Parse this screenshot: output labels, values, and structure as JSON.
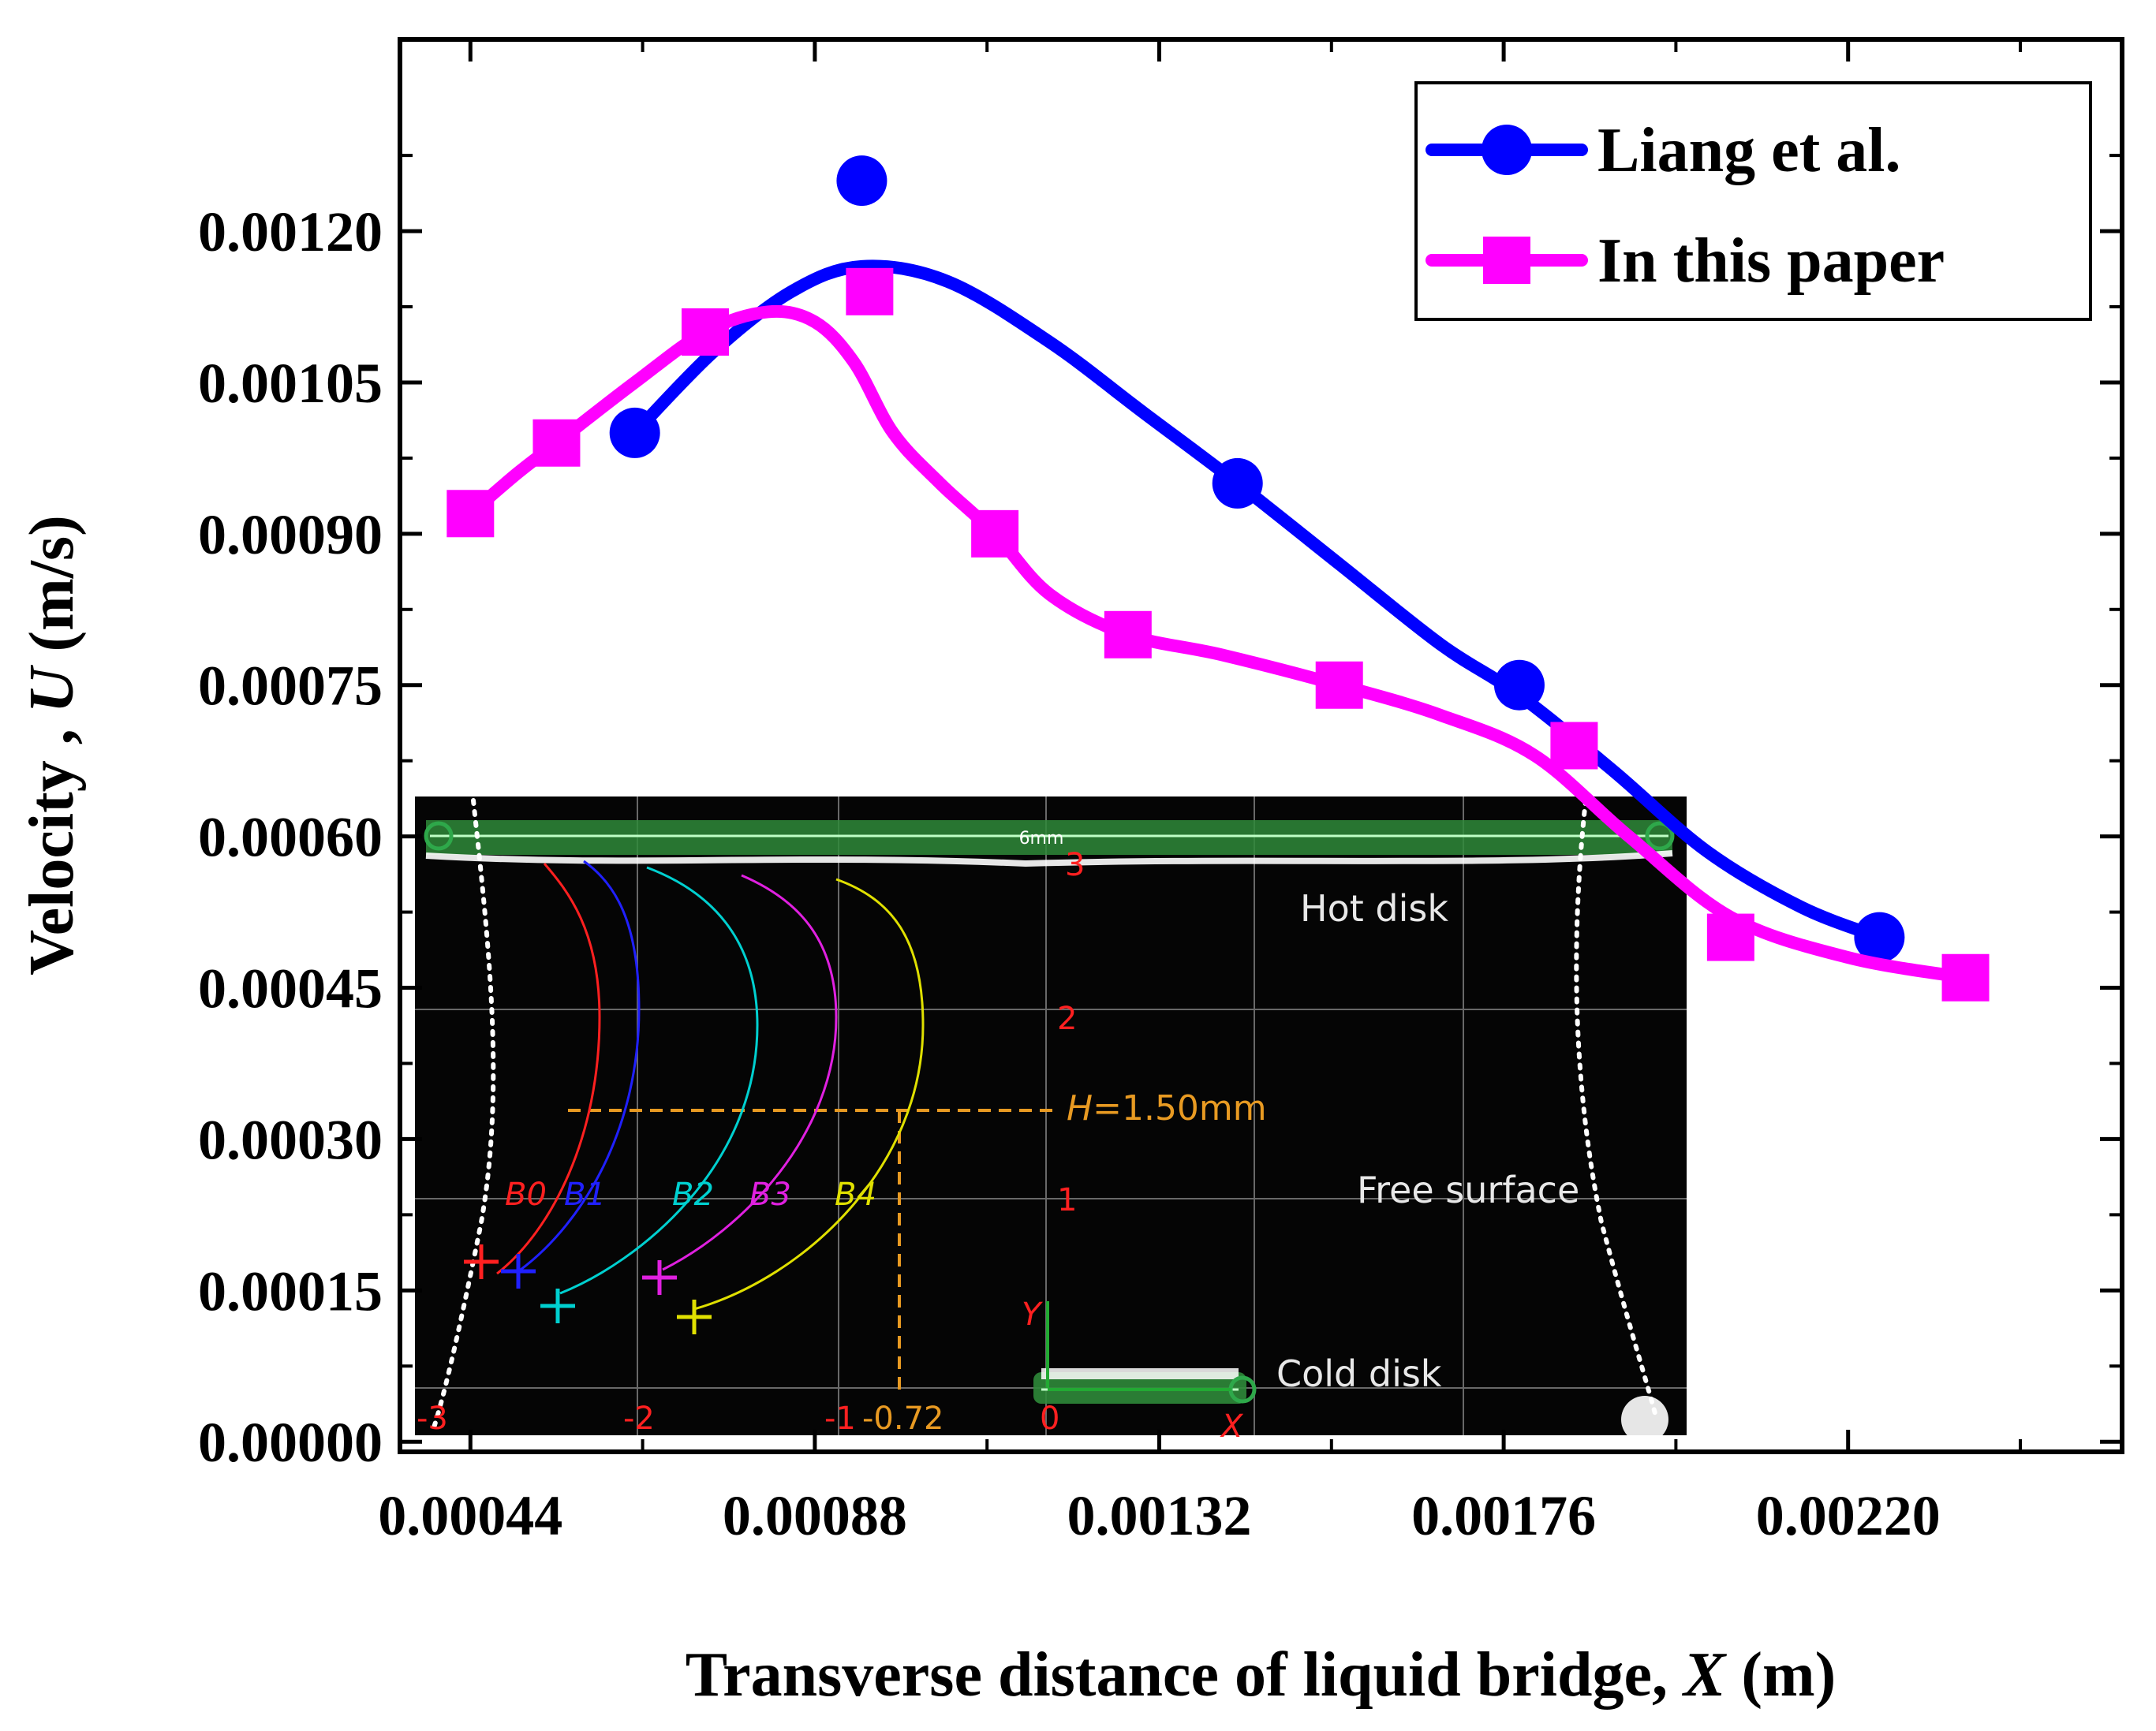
{
  "chart_data": {
    "type": "line",
    "xlabel_prefix": "Transverse distance of liquid bridge, ",
    "xlabel_var": "X",
    "xlabel_unit": " (m)",
    "ylabel_prefix": "Velocity , ",
    "ylabel_var": "U",
    "ylabel_unit": " (m/s)",
    "xlim": [
      0.00035,
      0.00255
    ],
    "ylim": [
      -1e-05,
      0.00139
    ],
    "x_ticks": [
      0.00044,
      0.00088,
      0.00132,
      0.00176,
      0.0022
    ],
    "x_tick_labels": [
      "0.00044",
      "0.00088",
      "0.00132",
      "0.00176",
      "0.00220"
    ],
    "y_ticks": [
      0.0,
      0.00015,
      0.0003,
      0.00045,
      0.0006,
      0.00075,
      0.0009,
      0.00105,
      0.0012
    ],
    "y_tick_labels": [
      "0.00000",
      "0.00015",
      "0.00030",
      "0.00045",
      "0.00060",
      "0.00075",
      "0.00090",
      "0.00105",
      "0.00120"
    ],
    "grid": false,
    "legend_position": "top-right",
    "series": [
      {
        "name": "Liang et al.",
        "color": "#0000ff",
        "marker": "circle",
        "x": [
          0.00065,
          0.00094,
          0.00142,
          0.00178,
          0.00224
        ],
        "y": [
          0.001,
          0.00125,
          0.00095,
          0.00075,
          0.0005
        ],
        "curve_x": [
          0.00065,
          0.00075,
          0.00085,
          0.00094,
          0.00105,
          0.00118,
          0.0013,
          0.00142,
          0.00155,
          0.00168,
          0.00178,
          0.0019,
          0.00202,
          0.00214,
          0.00224
        ],
        "curve_y": [
          0.001,
          0.00108,
          0.00114,
          0.001165,
          0.00115,
          0.00109,
          0.00102,
          0.00095,
          0.00087,
          0.00079,
          0.00074,
          0.000665,
          0.000585,
          0.00053,
          0.0005
        ]
      },
      {
        "name": "In this paper",
        "color": "#ff00ff",
        "marker": "square",
        "x": [
          0.00044,
          0.00055,
          0.00074,
          0.00095,
          0.00111,
          0.00128,
          0.00155,
          0.00185,
          0.00205,
          0.00235
        ],
        "y": [
          0.00092,
          0.00099,
          0.0011,
          0.00114,
          0.0009,
          0.0008,
          0.00075,
          0.00069,
          0.0005,
          0.00046
        ],
        "curve_x": [
          0.00044,
          0.0005,
          0.00055,
          0.00065,
          0.00074,
          0.00082,
          0.00088,
          0.00093,
          0.00098,
          0.00104,
          0.00111,
          0.00118,
          0.00128,
          0.0014,
          0.00155,
          0.00168,
          0.0018,
          0.00192,
          0.00205,
          0.0022,
          0.00235
        ],
        "curve_y": [
          0.00092,
          0.00096,
          0.00099,
          0.00105,
          0.0011,
          0.00112,
          0.00111,
          0.00107,
          0.001,
          0.00095,
          0.0009,
          0.00084,
          0.0008,
          0.00078,
          0.00075,
          0.00072,
          0.00068,
          0.0006,
          0.00052,
          0.00048,
          0.00046
        ]
      }
    ],
    "inset": {
      "top_label": "6mm",
      "hot_disk": "Hot disk",
      "free_surface": "Free surface",
      "cold_disk": "Cold disk",
      "height_label_var": "H",
      "height_label_val": "=1.50mm",
      "axis_y": "Y",
      "axis_x": "X",
      "x_axis_labels": [
        "-3",
        "-2",
        "-1",
        "-0.72",
        "0"
      ],
      "y_axis_labels": [
        "3",
        "2",
        "1"
      ],
      "particles": [
        {
          "label": "B0",
          "color": "#ff2020"
        },
        {
          "label": "B1",
          "color": "#2020ff"
        },
        {
          "label": "B2",
          "color": "#00d0d0"
        },
        {
          "label": "B3",
          "color": "#e020e0"
        },
        {
          "label": "B4",
          "color": "#e0e000"
        }
      ]
    }
  }
}
